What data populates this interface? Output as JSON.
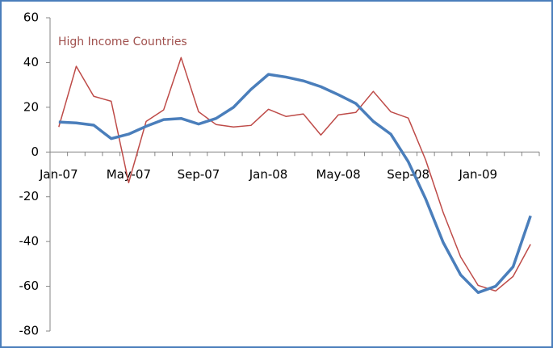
{
  "chart_data": {
    "type": "line",
    "categories": [
      "Jan-07",
      null,
      null,
      null,
      "May-07",
      null,
      null,
      null,
      "Sep-07",
      null,
      null,
      null,
      "Jan-08",
      null,
      null,
      null,
      "May-08",
      null,
      null,
      null,
      "Sep-08",
      null,
      null,
      null,
      "Jan-09",
      null,
      null,
      null
    ],
    "series": [
      {
        "color": "#4a7ebb",
        "width": 3.5,
        "values": [
          13.4,
          13,
          12,
          6,
          8,
          11.5,
          14.5,
          15,
          12.5,
          15,
          20,
          28,
          34.7,
          33.5,
          31.8,
          29.2,
          25.6,
          21.7,
          13.7,
          8,
          -4.3,
          -21,
          -40.4,
          -54.9,
          -62.8,
          -60,
          -51.3,
          -28.5
        ]
      },
      {
        "name": "High Income Countries",
        "color": "#be4b48",
        "width": 1.5,
        "values": [
          11.2,
          38.3,
          24.9,
          22.7,
          -13.7,
          13.7,
          18.8,
          42.2,
          18,
          12.3,
          11.2,
          11.9,
          19.1,
          15.9,
          17,
          7.6,
          16.6,
          17.7,
          27.1,
          18,
          15.2,
          -3.6,
          -27,
          -46.9,
          -59.6,
          -62.1,
          -55.6,
          -41.2
        ]
      }
    ],
    "ylim": [
      -80,
      60
    ],
    "yticks": [
      -80,
      -60,
      -40,
      -20,
      0,
      20,
      40,
      60
    ]
  }
}
